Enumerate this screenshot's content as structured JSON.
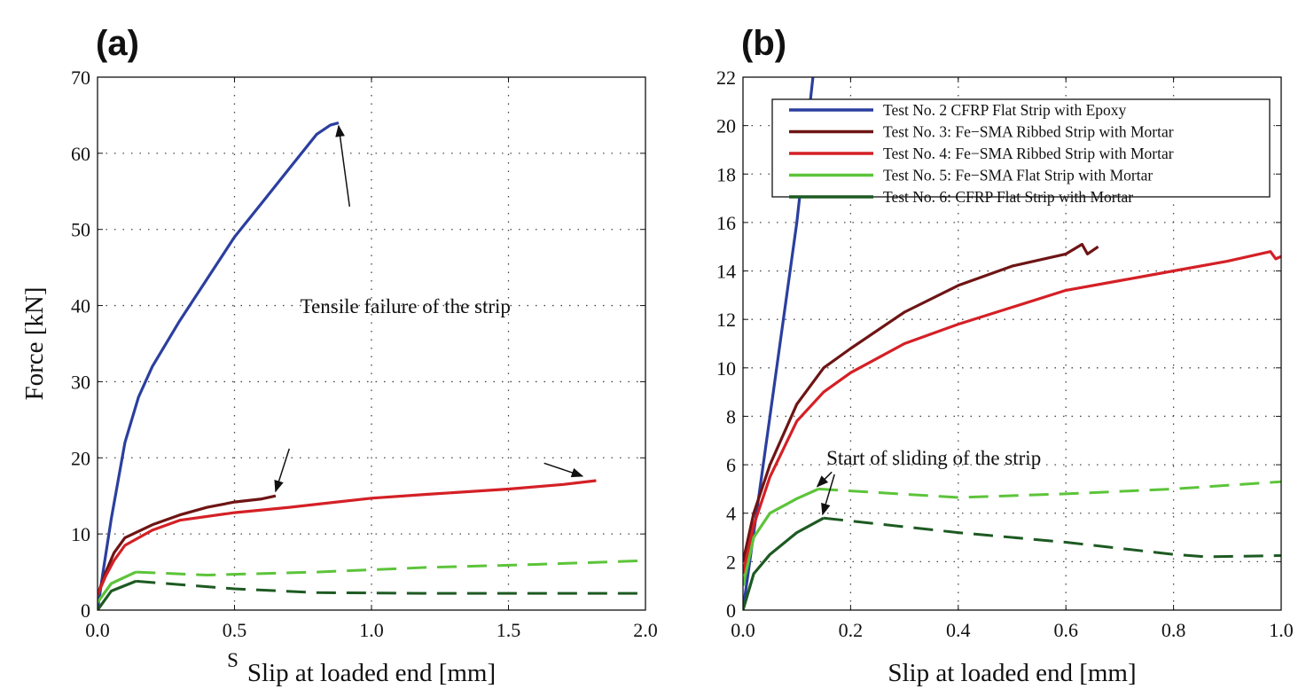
{
  "chart_data": [
    {
      "panel_label": "(a)",
      "type": "line",
      "xlabel": "Slip at loaded end [mm]",
      "ylabel": "Force [kN]",
      "xlim": [
        0,
        2.0
      ],
      "ylim": [
        0,
        70
      ],
      "xticks": [
        "0.0",
        "0.5",
        "1.0",
        "1.5",
        "2.0"
      ],
      "yticks": [
        "0",
        "10",
        "20",
        "30",
        "40",
        "50",
        "60",
        "70"
      ],
      "grid": true,
      "stray_text": "S",
      "annotations": [
        {
          "text": "Tensile failure of the strip",
          "x": 0.74,
          "y": 39
        },
        {
          "arrow_from": [
            0.92,
            53
          ],
          "arrow_to": [
            0.88,
            63.6
          ]
        },
        {
          "arrow_from": [
            0.7,
            21.2
          ],
          "arrow_to": [
            0.65,
            15.6
          ]
        },
        {
          "arrow_from": [
            1.63,
            19.3
          ],
          "arrow_to": [
            1.77,
            17.6
          ]
        }
      ],
      "series": [
        {
          "color": "#2b3f9e",
          "solid": [
            [
              0,
              0
            ],
            [
              0.02,
              5
            ],
            [
              0.05,
              12
            ],
            [
              0.1,
              22
            ],
            [
              0.15,
              28
            ],
            [
              0.2,
              32
            ],
            [
              0.3,
              38
            ],
            [
              0.4,
              43.5
            ],
            [
              0.5,
              49
            ],
            [
              0.6,
              53.5
            ],
            [
              0.7,
              58
            ],
            [
              0.8,
              62.5
            ],
            [
              0.85,
              63.7
            ],
            [
              0.88,
              64
            ]
          ],
          "dashed": []
        },
        {
          "color": "#6e1414",
          "solid": [
            [
              0,
              2
            ],
            [
              0.03,
              5
            ],
            [
              0.06,
              7.5
            ],
            [
              0.1,
              9.5
            ],
            [
              0.2,
              11.2
            ],
            [
              0.3,
              12.5
            ],
            [
              0.4,
              13.5
            ],
            [
              0.5,
              14.2
            ],
            [
              0.6,
              14.6
            ],
            [
              0.65,
              15
            ]
          ],
          "dashed": []
        },
        {
          "color": "#d42026",
          "solid": [
            [
              0,
              2
            ],
            [
              0.03,
              4.5
            ],
            [
              0.06,
              6.5
            ],
            [
              0.1,
              8.5
            ],
            [
              0.2,
              10.5
            ],
            [
              0.3,
              11.8
            ],
            [
              0.5,
              12.8
            ],
            [
              0.7,
              13.5
            ],
            [
              1.0,
              14.7
            ],
            [
              1.2,
              15.2
            ],
            [
              1.5,
              15.9
            ],
            [
              1.7,
              16.5
            ],
            [
              1.82,
              17
            ]
          ],
          "dashed": []
        },
        {
          "color": "#5cc43a",
          "solid": [
            [
              0,
              1
            ],
            [
              0.05,
              3.5
            ],
            [
              0.14,
              5
            ]
          ],
          "dashed": [
            [
              0.14,
              5
            ],
            [
              0.4,
              4.6
            ],
            [
              0.8,
              5
            ],
            [
              1.2,
              5.6
            ],
            [
              1.6,
              6
            ],
            [
              2.0,
              6.5
            ]
          ]
        },
        {
          "color": "#1d5a22",
          "solid": [
            [
              0,
              0
            ],
            [
              0.05,
              2.5
            ],
            [
              0.14,
              3.8
            ]
          ],
          "dashed": [
            [
              0.14,
              3.8
            ],
            [
              0.5,
              2.8
            ],
            [
              0.8,
              2.3
            ],
            [
              1.2,
              2.2
            ],
            [
              2.0,
              2.2
            ]
          ]
        }
      ]
    },
    {
      "panel_label": "(b)",
      "type": "line",
      "xlabel": "Slip at loaded end [mm]",
      "ylabel": "",
      "xlim": [
        0,
        1.0
      ],
      "ylim": [
        0,
        22
      ],
      "xticks": [
        "0.0",
        "0.2",
        "0.4",
        "0.6",
        "0.8",
        "1.0"
      ],
      "yticks": [
        "0",
        "2",
        "4",
        "6",
        "8",
        "10",
        "12",
        "14",
        "16",
        "18",
        "20",
        "22"
      ],
      "grid": true,
      "legend_position": "top",
      "annotations": [
        {
          "text": "Start of sliding of the strip",
          "x": 0.155,
          "y": 6.0
        },
        {
          "arrow_from": [
            0.165,
            5.7
          ],
          "arrow_to": [
            0.138,
            5.1
          ]
        },
        {
          "arrow_from": [
            0.17,
            5.6
          ],
          "arrow_to": [
            0.148,
            3.95
          ]
        }
      ],
      "series": [
        {
          "name": "Test No. 2 CFRP Flat Strip with Epoxy",
          "color": "#2b3f9e",
          "solid": [
            [
              0,
              0
            ],
            [
              0.05,
              8
            ],
            [
              0.1,
              16
            ],
            [
              0.13,
              22
            ]
          ],
          "dashed": []
        },
        {
          "name": "Test No. 3: Fe−SMA Ribbed Strip with Mortar",
          "color": "#6e1414",
          "solid": [
            [
              0,
              2
            ],
            [
              0.02,
              4
            ],
            [
              0.05,
              6
            ],
            [
              0.1,
              8.5
            ],
            [
              0.15,
              10
            ],
            [
              0.2,
              10.8
            ],
            [
              0.3,
              12.3
            ],
            [
              0.4,
              13.4
            ],
            [
              0.5,
              14.2
            ],
            [
              0.6,
              14.7
            ],
            [
              0.63,
              15.1
            ],
            [
              0.64,
              14.7
            ],
            [
              0.66,
              15
            ]
          ],
          "dashed": []
        },
        {
          "name": "Test No. 4: Fe−SMA Ribbed Strip with Mortar",
          "color": "#d42026",
          "solid": [
            [
              0,
              1.5
            ],
            [
              0.02,
              3.5
            ],
            [
              0.05,
              5.5
            ],
            [
              0.1,
              7.8
            ],
            [
              0.15,
              9
            ],
            [
              0.2,
              9.8
            ],
            [
              0.3,
              11
            ],
            [
              0.4,
              11.8
            ],
            [
              0.5,
              12.5
            ],
            [
              0.6,
              13.2
            ],
            [
              0.7,
              13.6
            ],
            [
              0.8,
              14
            ],
            [
              0.9,
              14.4
            ],
            [
              0.98,
              14.8
            ],
            [
              0.99,
              14.5
            ],
            [
              1.0,
              14.6
            ]
          ],
          "dashed": []
        },
        {
          "name": "Test No. 5: Fe−SMA Flat Strip with Mortar",
          "color": "#5cc43a",
          "solid": [
            [
              0,
              1
            ],
            [
              0.02,
              3
            ],
            [
              0.05,
              4
            ],
            [
              0.1,
              4.6
            ],
            [
              0.14,
              5
            ]
          ],
          "dashed": [
            [
              0.14,
              5
            ],
            [
              0.4,
              4.65
            ],
            [
              0.6,
              4.8
            ],
            [
              0.8,
              5
            ],
            [
              1.0,
              5.3
            ]
          ]
        },
        {
          "name": "Test No. 6: CFRP Flat Strip with Mortar",
          "color": "#1d5a22",
          "solid": [
            [
              0,
              0
            ],
            [
              0.02,
              1.5
            ],
            [
              0.05,
              2.3
            ],
            [
              0.1,
              3.2
            ],
            [
              0.15,
              3.8
            ]
          ],
          "dashed": [
            [
              0.15,
              3.8
            ],
            [
              0.4,
              3.2
            ],
            [
              0.6,
              2.8
            ],
            [
              0.8,
              2.3
            ],
            [
              0.86,
              2.2
            ],
            [
              1.0,
              2.25
            ]
          ]
        }
      ]
    }
  ]
}
